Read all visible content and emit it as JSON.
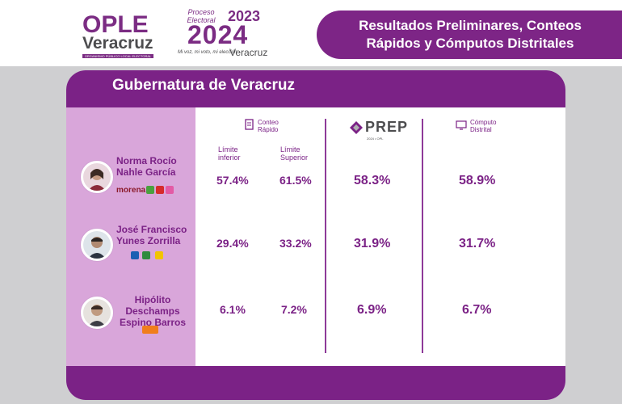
{
  "logos": {
    "ople_word": "OPLE",
    "ople_sub": "Veracruz",
    "ople_tag": "ORGANISMO PÚBLICO LOCAL ELECTORAL",
    "proceso_label": "Proceso Electoral",
    "year_2023": "2023",
    "year_2024": "2024",
    "slogan": "Mi voz, mi voto, mi elección",
    "slogan_place": "Veracruz"
  },
  "header": {
    "title_line1": "Resultados Preliminares, Conteos",
    "title_line2": "Rápidos y Cómputos Distritales"
  },
  "card": {
    "title": "Gubernatura de Veracruz",
    "columns": {
      "conteo_line1": "Conteo",
      "conteo_line2": "Rápido",
      "limit_inf": "Límite\ninferior",
      "limit_sup": "Límite\nSuperior",
      "prep": "PREP",
      "prep_sub": "2024 • OPL",
      "computo_line1": "Cómputo",
      "computo_line2": "Distrital"
    },
    "candidates": [
      {
        "name": "Norma Rocío Nahle García",
        "coalition": "morena",
        "inferior": "57.4%",
        "superior": "61.5%",
        "prep": "58.3%",
        "computo": "58.9%"
      },
      {
        "name": "José Francisco Yunes Zorrilla",
        "coalition": "",
        "inferior": "29.4%",
        "superior": "33.2%",
        "prep": "31.9%",
        "computo": "31.7%"
      },
      {
        "name": "Hipólito Deschamps Espino Barros",
        "coalition": "",
        "inferior": "6.1%",
        "superior": "7.2%",
        "prep": "6.9%",
        "computo": "6.7%"
      }
    ]
  },
  "colors": {
    "primary": "#7b2286",
    "candidate_bg": "#d9a6da",
    "page_bg": "#cfcfd1"
  }
}
